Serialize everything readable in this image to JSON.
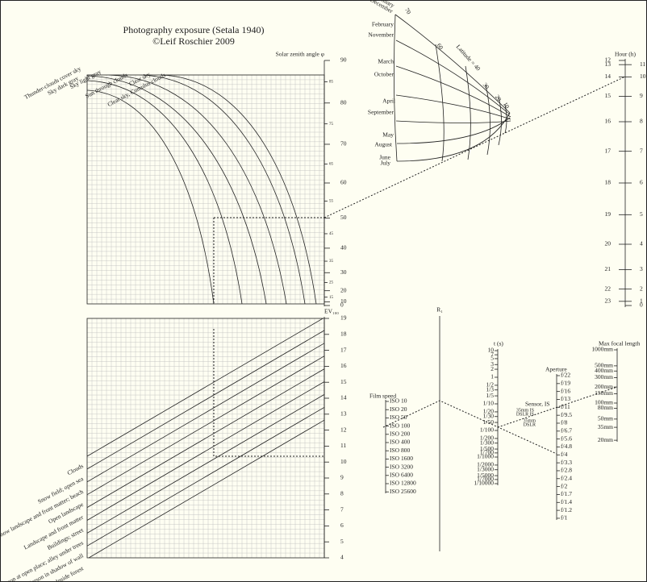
{
  "title": "Photography exposure (Setala 1940)",
  "subtitle": "©Leif Roschier 2009",
  "sky_chart": {
    "axis_label": "Solar zenith angle φ",
    "ticks": [
      0,
      10,
      20,
      30,
      40,
      50,
      60,
      70,
      80,
      90
    ],
    "minor_ticks": [
      15,
      25,
      35,
      45,
      55,
      65,
      75,
      85
    ],
    "curve_labels": [
      "Thunder-clouds cover sky",
      "Sky dark gray",
      "Sky light gray",
      "Sun through clouds",
      "Clear sky, Cumulus clouds",
      "Clear sky"
    ]
  },
  "ev_chart": {
    "axis_label": "EV₁₀₀",
    "ticks": [
      4,
      5,
      6,
      7,
      8,
      9,
      10,
      11,
      12,
      13,
      14,
      15,
      16,
      17,
      18,
      19
    ],
    "scene_labels": [
      "Clouds",
      "Snow field; open sea",
      "Snow landscape and front matter; beach",
      "Open landscape",
      "Landscape and front matter",
      "Buildings; street",
      "Person at open place; alley under trees",
      "Person in shadow of wall",
      "Inside forest"
    ]
  },
  "r_label": "R₁",
  "film_speed": {
    "label": "Film speed",
    "ticks": [
      "ISO 10",
      "ISO 20",
      "ISO 50",
      "ISO 100",
      "ISO 200",
      "ISO 400",
      "ISO 800",
      "ISO 1600",
      "ISO 3200",
      "ISO 6400",
      "ISO 12800",
      "ISO 25600"
    ]
  },
  "shutter": {
    "label": "t (s)",
    "ticks": [
      "10",
      "7",
      "5",
      "3",
      "2",
      "1",
      "1/2",
      "1/3",
      "1/5",
      "1/10",
      "1/20",
      "1/30",
      "1/50",
      "1/100",
      "1/200",
      "1/300",
      "1/500",
      "1/700",
      "1/1000",
      "1/2000",
      "1/3000",
      "1/5000",
      "1/7000",
      "1/10000"
    ]
  },
  "aperture": {
    "label": "Aperture",
    "ticks": [
      "f/22",
      "f/19",
      "f/16",
      "f/13",
      "f/11",
      "f/9.5",
      "f/8",
      "f/6.7",
      "f/5.6",
      "f/4.8",
      "f/4",
      "f/3.3",
      "f/2.8",
      "f/2.4",
      "f/2",
      "f/1.7",
      "f/1.4",
      "f/1.2",
      "f/1"
    ]
  },
  "sensor": {
    "label": "Sensor, IS",
    "ticks": [
      "35mm IS",
      "DSLR IS",
      "35mm",
      "DSLR"
    ]
  },
  "focal": {
    "label": "Max focal length",
    "ticks": [
      "1000mm",
      "500mm",
      "400mm",
      "300mm",
      "200mm",
      "150mm",
      "100mm",
      "80mm",
      "50mm",
      "35mm",
      "20mm"
    ]
  },
  "hour": {
    "label": "Hour (h)",
    "afternoon": [
      12,
      13,
      14,
      15,
      16,
      17,
      18,
      19,
      20,
      21,
      22,
      23
    ],
    "morning": [
      11,
      10,
      9,
      8,
      7,
      6,
      5,
      4,
      3,
      2,
      1,
      0
    ]
  },
  "date_chart": {
    "months": [
      "January",
      "December",
      "February",
      "November",
      "March",
      "October",
      "April",
      "September",
      "May",
      "August",
      "June",
      "July"
    ],
    "latitudes": [
      "70",
      "60",
      "Latitude = 40",
      "30",
      "20",
      "10"
    ]
  }
}
